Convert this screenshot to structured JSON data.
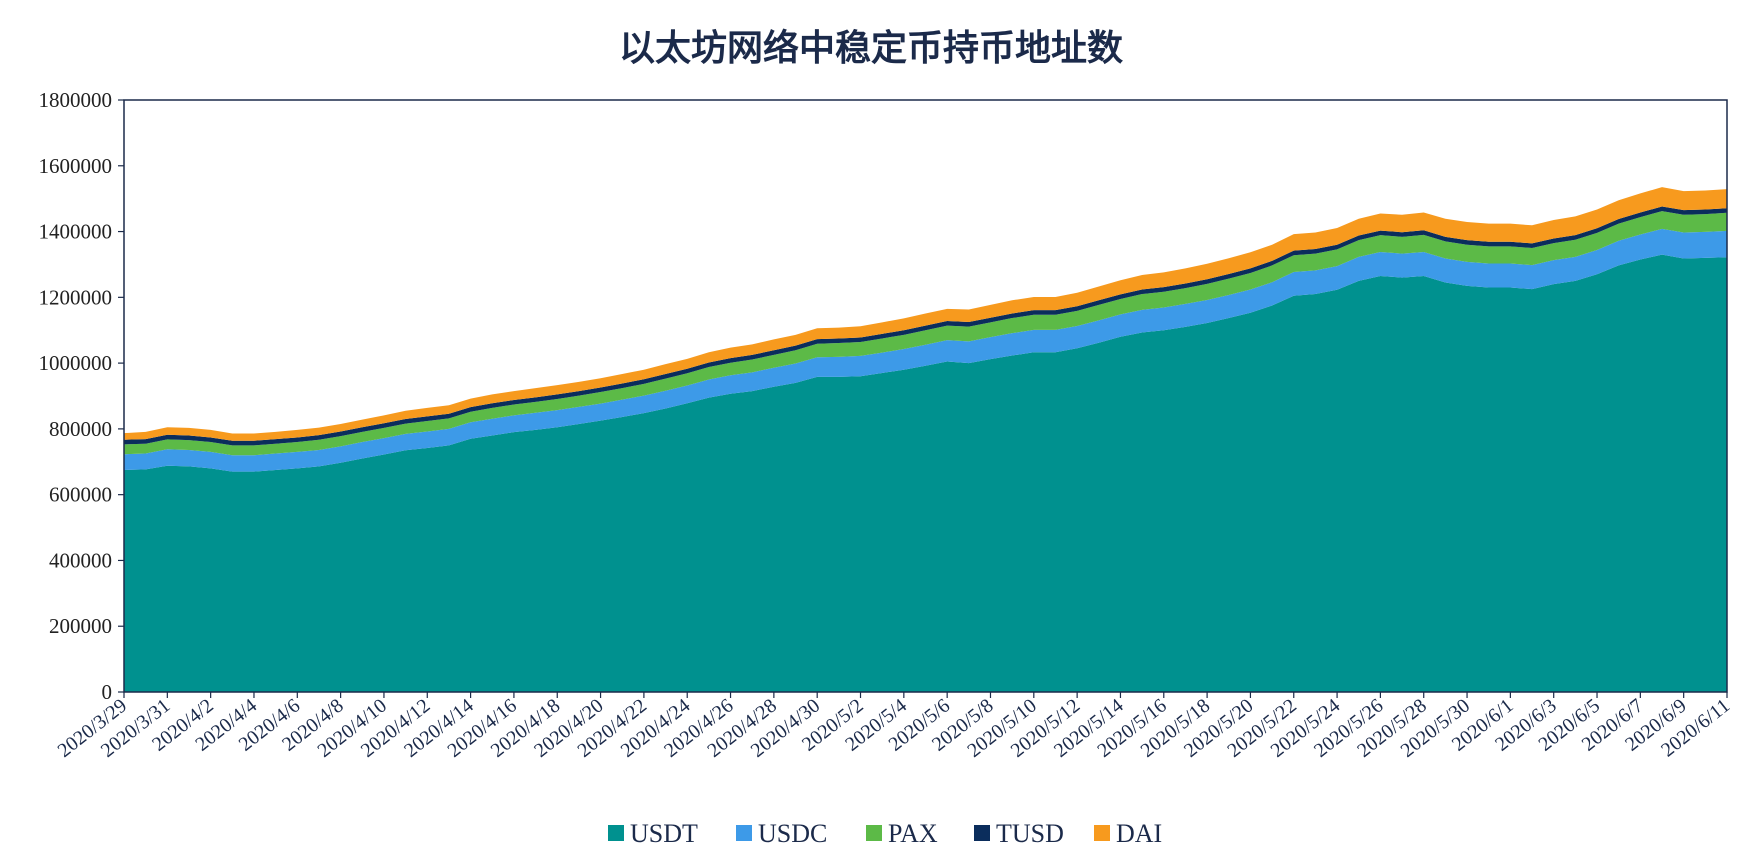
{
  "chart_data": {
    "type": "area",
    "stacked": true,
    "title": "以太坊网络中稳定币持币地址数",
    "xlabel": "",
    "ylabel": "",
    "ylim": [
      0,
      1800000
    ],
    "yticks": [
      0,
      200000,
      400000,
      600000,
      800000,
      1000000,
      1200000,
      1400000,
      1600000,
      1800000
    ],
    "x_tick_labels": [
      "2020/3/29",
      "2020/3/31",
      "2020/4/2",
      "2020/4/4",
      "2020/4/6",
      "2020/4/8",
      "2020/4/10",
      "2020/4/12",
      "2020/4/14",
      "2020/4/16",
      "2020/4/18",
      "2020/4/20",
      "2020/4/22",
      "2020/4/24",
      "2020/4/26",
      "2020/4/28",
      "2020/4/30",
      "2020/5/2",
      "2020/5/4",
      "2020/5/6",
      "2020/5/8",
      "2020/5/10",
      "2020/5/12",
      "2020/5/14",
      "2020/5/16",
      "2020/5/18",
      "2020/5/20",
      "2020/5/22",
      "2020/5/24",
      "2020/5/26",
      "2020/5/28",
      "2020/5/30",
      "2020/6/1",
      "2020/6/3",
      "2020/6/5",
      "2020/6/7",
      "2020/6/9",
      "2020/6/11"
    ],
    "grid": false,
    "legend_position": "bottom",
    "x": [
      "2020/3/29",
      "2020/3/30",
      "2020/3/31",
      "2020/4/1",
      "2020/4/2",
      "2020/4/3",
      "2020/4/4",
      "2020/4/5",
      "2020/4/6",
      "2020/4/7",
      "2020/4/8",
      "2020/4/9",
      "2020/4/10",
      "2020/4/11",
      "2020/4/12",
      "2020/4/13",
      "2020/4/14",
      "2020/4/15",
      "2020/4/16",
      "2020/4/17",
      "2020/4/18",
      "2020/4/19",
      "2020/4/20",
      "2020/4/21",
      "2020/4/22",
      "2020/4/23",
      "2020/4/24",
      "2020/4/25",
      "2020/4/26",
      "2020/4/27",
      "2020/4/28",
      "2020/4/29",
      "2020/4/30",
      "2020/5/1",
      "2020/5/2",
      "2020/5/3",
      "2020/5/4",
      "2020/5/5",
      "2020/5/6",
      "2020/5/7",
      "2020/5/8",
      "2020/5/9",
      "2020/5/10",
      "2020/5/11",
      "2020/5/12",
      "2020/5/13",
      "2020/5/14",
      "2020/5/15",
      "2020/5/16",
      "2020/5/17",
      "2020/5/18",
      "2020/5/19",
      "2020/5/20",
      "2020/5/21",
      "2020/5/22",
      "2020/5/23",
      "2020/5/24",
      "2020/5/25",
      "2020/5/26",
      "2020/5/27",
      "2020/5/28",
      "2020/5/29",
      "2020/5/30",
      "2020/5/31",
      "2020/6/1",
      "2020/6/2",
      "2020/6/3",
      "2020/6/4",
      "2020/6/5",
      "2020/6/6",
      "2020/6/7",
      "2020/6/8",
      "2020/6/9",
      "2020/6/10",
      "2020/6/11"
    ],
    "series": [
      {
        "name": "USDT",
        "color": "#00918f",
        "values": [
          675000,
          677000,
          688000,
          686000,
          680000,
          670000,
          670000,
          675000,
          680000,
          686000,
          697000,
          710000,
          722000,
          735000,
          742000,
          750000,
          770000,
          780000,
          790000,
          797000,
          805000,
          815000,
          825000,
          836000,
          848000,
          862000,
          878000,
          895000,
          907000,
          915000,
          928000,
          940000,
          958000,
          958000,
          960000,
          970000,
          980000,
          992000,
          1005000,
          1000000,
          1012000,
          1023000,
          1033000,
          1033000,
          1045000,
          1062000,
          1080000,
          1093000,
          1100000,
          1110000,
          1122000,
          1137000,
          1153000,
          1175000,
          1205000,
          1210000,
          1223000,
          1250000,
          1265000,
          1260000,
          1265000,
          1245000,
          1235000,
          1230000,
          1230000,
          1225000,
          1240000,
          1250000,
          1270000,
          1297000,
          1315000,
          1330000,
          1318000,
          1320000,
          1322000
        ]
      },
      {
        "name": "USDC",
        "color": "#3d9ae8",
        "values": [
          48000,
          48000,
          50000,
          50000,
          50000,
          50000,
          50000,
          50000,
          50000,
          50000,
          50000,
          50000,
          50000,
          50000,
          50000,
          50000,
          50000,
          51000,
          51000,
          52000,
          52000,
          52000,
          52000,
          53000,
          53000,
          54000,
          54000,
          55000,
          56000,
          57000,
          58000,
          59000,
          60000,
          61000,
          62000,
          62000,
          63000,
          64000,
          65000,
          66000,
          67000,
          68000,
          68000,
          68000,
          68000,
          68000,
          68000,
          69000,
          69000,
          70000,
          70000,
          70000,
          71000,
          71000,
          72000,
          72000,
          72000,
          73000,
          73000,
          73000,
          73000,
          73000,
          73000,
          73000,
          73000,
          73000,
          73000,
          73000,
          74000,
          75000,
          76000,
          78000,
          79000,
          79000,
          80000
        ]
      },
      {
        "name": "PAX",
        "color": "#5cba47",
        "values": [
          30000,
          30000,
          30000,
          30000,
          30000,
          30000,
          30000,
          30000,
          30000,
          31000,
          31000,
          31000,
          31000,
          31000,
          32000,
          32000,
          32000,
          33000,
          33000,
          33000,
          34000,
          34000,
          35000,
          35000,
          36000,
          37000,
          37000,
          38000,
          38000,
          39000,
          39000,
          40000,
          41000,
          42000,
          42000,
          43000,
          43000,
          44000,
          44000,
          45000,
          45000,
          46000,
          46000,
          46000,
          46000,
          47000,
          47000,
          48000,
          48000,
          48000,
          49000,
          50000,
          50000,
          51000,
          51000,
          51000,
          51000,
          51000,
          51000,
          51000,
          52000,
          52000,
          52000,
          52000,
          52000,
          52000,
          52000,
          52000,
          52000,
          52000,
          53000,
          54000,
          54000,
          54000,
          55000
        ]
      },
      {
        "name": "TUSD",
        "color": "#0b2d5c",
        "values": [
          14000,
          14000,
          14000,
          14000,
          14000,
          14000,
          14000,
          14000,
          14000,
          14000,
          14000,
          14000,
          14000,
          14000,
          14000,
          14000,
          14000,
          14000,
          14000,
          14000,
          14000,
          14000,
          14000,
          14000,
          14000,
          14000,
          14000,
          14000,
          14000,
          14000,
          14000,
          14000,
          14000,
          14000,
          14000,
          14000,
          14000,
          14000,
          14000,
          14000,
          14000,
          14000,
          14000,
          14000,
          14000,
          14000,
          14000,
          14000,
          14000,
          14000,
          14000,
          14000,
          14000,
          14000,
          14000,
          14000,
          14000,
          14000,
          14000,
          14000,
          14000,
          14000,
          14000,
          14000,
          14000,
          14000,
          14000,
          14000,
          14000,
          14000,
          14000,
          14000,
          14000,
          14000,
          14000
        ]
      },
      {
        "name": "DAI",
        "color": "#f79a1e",
        "values": [
          20000,
          22000,
          23000,
          23000,
          23000,
          22000,
          22000,
          22000,
          23000,
          23000,
          23000,
          23000,
          24000,
          25000,
          26000,
          26000,
          26000,
          27000,
          27000,
          28000,
          28000,
          28000,
          28000,
          29000,
          29000,
          30000,
          30000,
          31000,
          32000,
          32000,
          33000,
          33000,
          33000,
          33000,
          34000,
          35000,
          36000,
          37000,
          37000,
          38000,
          39000,
          40000,
          40000,
          40000,
          41000,
          42000,
          43000,
          44000,
          45000,
          46000,
          47000,
          48000,
          49000,
          49000,
          50000,
          50000,
          51000,
          51000,
          52000,
          53000,
          54000,
          55000,
          55000,
          55000,
          55000,
          55000,
          56000,
          57000,
          57000,
          57000,
          58000,
          59000,
          58000,
          58000,
          58000
        ]
      }
    ]
  }
}
